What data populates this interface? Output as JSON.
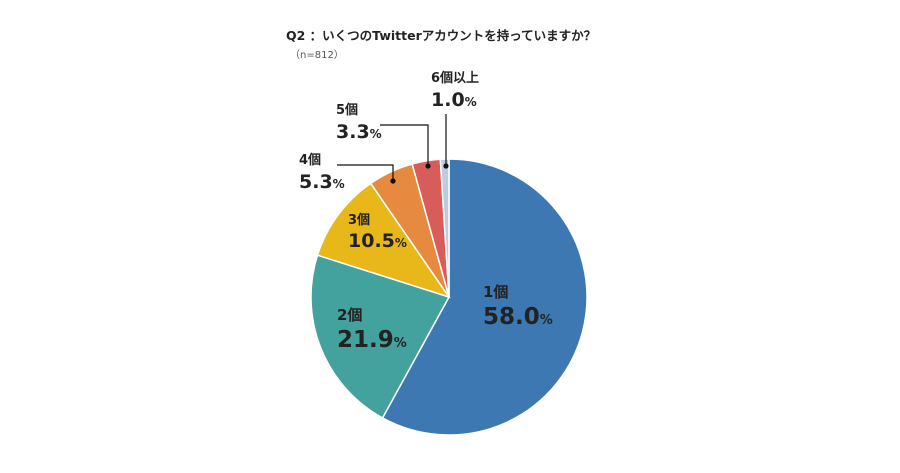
{
  "title": "Q2 ：いくつのTwitterアカウントを持っていますか？",
  "subtitle": "（n=812）",
  "chart_data": {
    "type": "pie",
    "start_angle_deg": 0,
    "direction": "clockwise",
    "slices": [
      {
        "label": "1個",
        "value": 58.0,
        "pct_text": "58.0",
        "color": "#3e78b3"
      },
      {
        "label": "2個",
        "value": 21.9,
        "pct_text": "21.9",
        "color": "#43a19e"
      },
      {
        "label": "3個",
        "value": 10.5,
        "pct_text": "10.5",
        "color": "#e8b71a"
      },
      {
        "label": "4個",
        "value": 5.3,
        "pct_text": "5.3",
        "color": "#e58a3f"
      },
      {
        "label": "5個",
        "value": 3.3,
        "pct_text": "3.3",
        "color": "#d85c5a"
      },
      {
        "label": "6個以上",
        "value": 1.0,
        "pct_text": "1.0",
        "color": "#b9cde0"
      }
    ],
    "unit": "%"
  }
}
